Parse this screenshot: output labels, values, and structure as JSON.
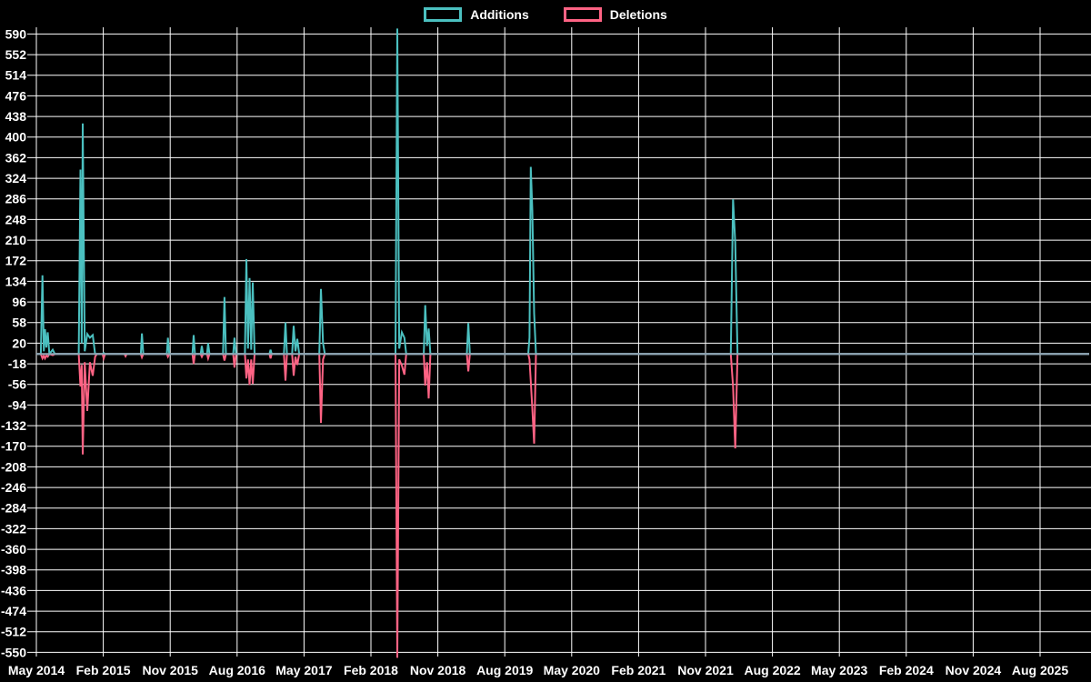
{
  "colors": {
    "background": "#000000",
    "grid": "#ffffff",
    "text": "#ffffff",
    "additions": "#4bc0c0",
    "deletions": "#ff6384",
    "baseline": "#8fa6b4"
  },
  "legend": {
    "items": [
      {
        "label": "Additions",
        "color": "#4bc0c0"
      },
      {
        "label": "Deletions",
        "color": "#ff6384"
      }
    ]
  },
  "chart_data": {
    "type": "line",
    "title": "",
    "legend_position": "top-center",
    "grid": "on",
    "background": "black",
    "x_axis": {
      "unit": "months since May 2014",
      "tick_interval_months": 9,
      "tick_labels": [
        "May 2014",
        "Feb 2015",
        "Nov 2015",
        "Aug 2016",
        "May 2017",
        "Feb 2018",
        "Nov 2018",
        "Aug 2019",
        "May 2020",
        "Feb 2021",
        "Nov 2021",
        "Aug 2022",
        "May 2023",
        "Feb 2024",
        "Nov 2024",
        "Aug 2025"
      ]
    },
    "y_axis": {
      "min": -550,
      "max": 590,
      "tick_step": 38,
      "tick_labels": [
        590,
        552,
        514,
        476,
        438,
        400,
        362,
        324,
        286,
        248,
        210,
        172,
        134,
        96,
        58,
        20,
        -18,
        -56,
        -94,
        -132,
        -170,
        -208,
        -246,
        -284,
        -322,
        -360,
        -398,
        -436,
        -474,
        -512,
        -550
      ]
    },
    "x": [
      0.0,
      0.6,
      0.82,
      1.0,
      1.16,
      1.35,
      1.53,
      1.75,
      2.2,
      2.5,
      5.7,
      5.93,
      6.1,
      6.24,
      6.5,
      6.85,
      7.2,
      7.58,
      7.9,
      8.15,
      8.9,
      9.05,
      9.25,
      11.85,
      12.0,
      12.15,
      14.05,
      14.2,
      14.38,
      17.55,
      17.7,
      17.88,
      21.0,
      21.15,
      21.33,
      22.1,
      22.25,
      22.43,
      22.95,
      23.1,
      23.28,
      25.1,
      25.3,
      25.5,
      26.48,
      26.65,
      26.85,
      28.05,
      28.25,
      28.47,
      28.68,
      28.9,
      29.1,
      29.35,
      31.35,
      31.5,
      31.65,
      33.3,
      33.5,
      33.7,
      34.4,
      34.6,
      34.85,
      35.1,
      35.35,
      38.05,
      38.27,
      38.55,
      38.8,
      48.3,
      48.55,
      48.8,
      49.16,
      49.5,
      49.75,
      52.1,
      52.3,
      52.55,
      52.76,
      53.0,
      57.9,
      58.1,
      58.3,
      66.15,
      66.32,
      66.5,
      66.7,
      66.95,
      67.2,
      93.4,
      93.7,
      94.0,
      94.3,
      141.6
    ],
    "series": [
      {
        "name": "Additions",
        "color": "#4bc0c0",
        "values": [
          0,
          0,
          145,
          5,
          46,
          12,
          40,
          0,
          8,
          0,
          0,
          340,
          20,
          425,
          5,
          37,
          30,
          35,
          0,
          0,
          0,
          2,
          0,
          0,
          0,
          0,
          0,
          38,
          0,
          0,
          30,
          0,
          0,
          35,
          0,
          0,
          15,
          0,
          0,
          20,
          0,
          0,
          105,
          0,
          0,
          30,
          0,
          0,
          175,
          10,
          140,
          8,
          132,
          0,
          0,
          8,
          0,
          0,
          58,
          0,
          0,
          52,
          5,
          28,
          0,
          0,
          120,
          20,
          0,
          0,
          600,
          10,
          40,
          30,
          0,
          0,
          90,
          15,
          47,
          0,
          0,
          57,
          0,
          0,
          30,
          345,
          265,
          75,
          0,
          0,
          285,
          205,
          0,
          0
        ]
      },
      {
        "name": "Deletions",
        "color": "#ff6384",
        "values": [
          0,
          0,
          -8,
          -3,
          -8,
          -3,
          -5,
          0,
          -2,
          0,
          0,
          -60,
          -20,
          -185,
          -15,
          -105,
          -15,
          -40,
          -5,
          0,
          0,
          -8,
          0,
          0,
          -4,
          0,
          0,
          -6,
          0,
          0,
          -5,
          0,
          0,
          -18,
          0,
          0,
          -5,
          0,
          0,
          -8,
          0,
          0,
          -12,
          0,
          0,
          -25,
          0,
          0,
          -45,
          -10,
          -57,
          -10,
          -55,
          0,
          0,
          -8,
          0,
          0,
          -49,
          0,
          0,
          -40,
          -5,
          -20,
          0,
          0,
          -127,
          -10,
          0,
          0,
          -560,
          -10,
          -21,
          -38,
          0,
          0,
          -58,
          -15,
          -82,
          0,
          0,
          -32,
          0,
          0,
          -10,
          -50,
          -100,
          -165,
          0,
          0,
          -60,
          -174,
          0,
          0
        ]
      }
    ]
  }
}
